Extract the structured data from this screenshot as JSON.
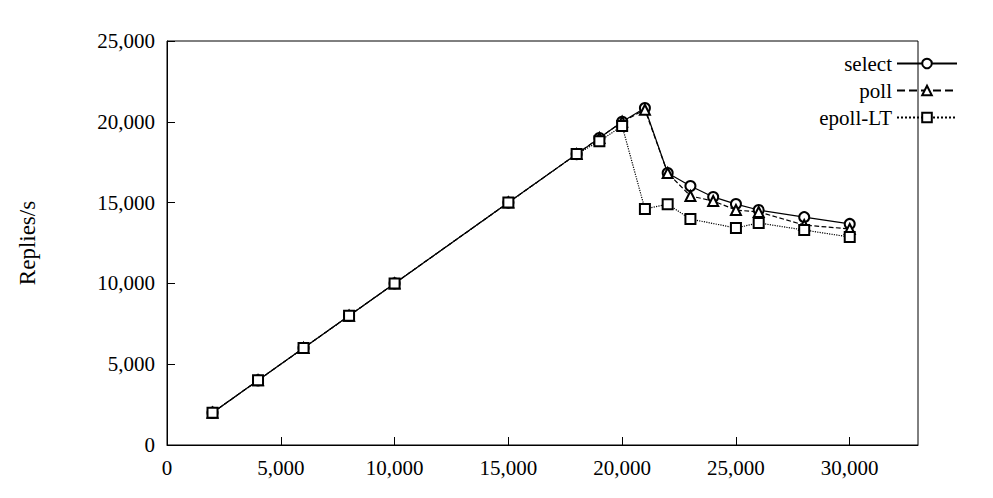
{
  "chart_data": {
    "type": "line",
    "y_label": "Replies/s",
    "xlim": [
      0,
      33000
    ],
    "xticks": [
      0,
      5000,
      10000,
      15000,
      20000,
      25000,
      30000
    ],
    "ylim": [
      0,
      25000
    ],
    "yticks": [
      0,
      5000,
      10000,
      15000,
      20000,
      25000
    ],
    "grid": false,
    "legend": "upper right",
    "series": [
      {
        "name": "select",
        "color": "#000000",
        "marker": "circle",
        "line_style": "solid",
        "x": [
          2000,
          4000,
          6000,
          8000,
          10000,
          15000,
          18000,
          19000,
          20000,
          21000,
          22000,
          23000,
          24000,
          25000,
          26000,
          28000,
          30000
        ],
        "values": [
          2000,
          4000,
          6000,
          8000,
          10000,
          15000,
          18000,
          19000,
          20000,
          20850,
          16830,
          16030,
          15350,
          14910,
          14540,
          14100,
          13680
        ]
      },
      {
        "name": "poll",
        "color": "#000000",
        "marker": "triangle",
        "line_style": "dashed",
        "x": [
          2000,
          4000,
          6000,
          8000,
          10000,
          15000,
          18000,
          19000,
          20000,
          21000,
          22000,
          23000,
          24000,
          25000,
          26000,
          28000,
          30000
        ],
        "values": [
          2000,
          4000,
          6000,
          8000,
          10000,
          15000,
          18000,
          19000,
          20000,
          20750,
          16830,
          15410,
          15100,
          14540,
          14420,
          13610,
          13370
        ]
      },
      {
        "name": "epoll-LT",
        "color": "#000000",
        "marker": "square",
        "line_style": "dotted",
        "x": [
          2000,
          4000,
          6000,
          8000,
          10000,
          15000,
          18000,
          19000,
          20000,
          21000,
          22000,
          23000,
          25000,
          26000,
          28000,
          30000
        ],
        "values": [
          2000,
          4000,
          6000,
          8000,
          10000,
          15000,
          18000,
          18800,
          19740,
          14600,
          14900,
          13980,
          13430,
          13740,
          13300,
          12870
        ]
      }
    ]
  }
}
